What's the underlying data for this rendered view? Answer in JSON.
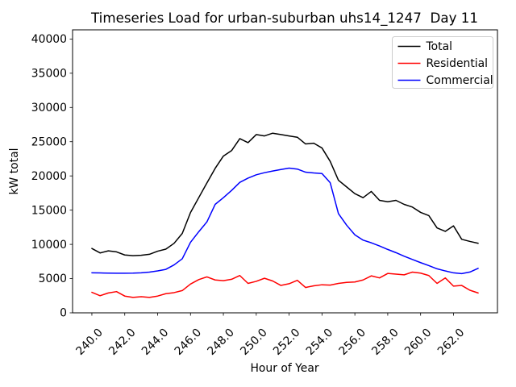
{
  "chart_data": {
    "type": "line",
    "title": "Timeseries Load for urban-suburban uhs14_1247  Day 11",
    "xlabel": "Hour of Year",
    "ylabel": "kW total",
    "xlim": [
      238.825,
      264.675
    ],
    "ylim": [
      0,
      41340
    ],
    "x_ticks": [
      240.0,
      242.0,
      244.0,
      246.0,
      248.0,
      250.0,
      252.0,
      254.0,
      256.0,
      258.0,
      260.0,
      262.0
    ],
    "x_tick_labels": [
      "240.0",
      "242.0",
      "244.0",
      "246.0",
      "248.0",
      "250.0",
      "252.0",
      "254.0",
      "256.0",
      "258.0",
      "260.0",
      "262.0"
    ],
    "y_ticks": [
      0,
      5000,
      10000,
      15000,
      20000,
      25000,
      30000,
      35000,
      40000
    ],
    "grid": false,
    "legend_position": "upper right",
    "x": [
      240.0,
      240.5,
      241.0,
      241.5,
      242.0,
      242.5,
      243.0,
      243.5,
      244.0,
      244.5,
      245.0,
      245.5,
      246.0,
      246.5,
      247.0,
      247.5,
      248.0,
      248.5,
      249.0,
      249.5,
      250.0,
      250.5,
      251.0,
      251.5,
      252.0,
      252.5,
      253.0,
      253.5,
      254.0,
      254.5,
      255.0,
      255.5,
      256.0,
      256.5,
      257.0,
      257.5,
      258.0,
      258.5,
      259.0,
      259.5,
      260.0,
      260.5,
      261.0,
      261.5,
      262.0,
      262.5,
      263.0,
      263.5
    ],
    "series": [
      {
        "name": "Total",
        "color": "#000000",
        "values": [
          9400,
          8750,
          9050,
          8900,
          8450,
          8350,
          8400,
          8550,
          9000,
          9300,
          10150,
          11600,
          14650,
          16820,
          18980,
          21100,
          22900,
          23700,
          25450,
          24860,
          26040,
          25840,
          26240,
          26040,
          25840,
          25650,
          24670,
          24780,
          24080,
          22120,
          19370,
          18390,
          17410,
          16820,
          17730,
          16430,
          16230,
          16430,
          15840,
          15450,
          14670,
          14200,
          12400,
          11900,
          12700,
          10740,
          10430,
          10160
        ]
      },
      {
        "name": "Residential",
        "color": "#ff0000",
        "values": [
          3000,
          2500,
          2900,
          3100,
          2450,
          2250,
          2350,
          2250,
          2450,
          2800,
          2950,
          3250,
          4200,
          4850,
          5250,
          4800,
          4700,
          4900,
          5450,
          4300,
          4600,
          5050,
          4650,
          4000,
          4250,
          4750,
          3700,
          3950,
          4100,
          4050,
          4300,
          4450,
          4500,
          4800,
          5400,
          5100,
          5750,
          5650,
          5550,
          5950,
          5800,
          5450,
          4300,
          5100,
          3900,
          4000,
          3300,
          2900
        ]
      },
      {
        "name": "Commercial",
        "color": "#0000ff",
        "values": [
          5850,
          5830,
          5800,
          5790,
          5780,
          5800,
          5850,
          5950,
          6120,
          6350,
          7000,
          7900,
          10300,
          11840,
          13290,
          15840,
          16820,
          17880,
          19060,
          19680,
          20160,
          20470,
          20710,
          20940,
          21140,
          21000,
          20550,
          20430,
          20350,
          19000,
          14500,
          12800,
          11400,
          10620,
          10230,
          9770,
          9260,
          8790,
          8270,
          7800,
          7330,
          6900,
          6430,
          6120,
          5840,
          5730,
          5960,
          6500
        ]
      }
    ]
  }
}
